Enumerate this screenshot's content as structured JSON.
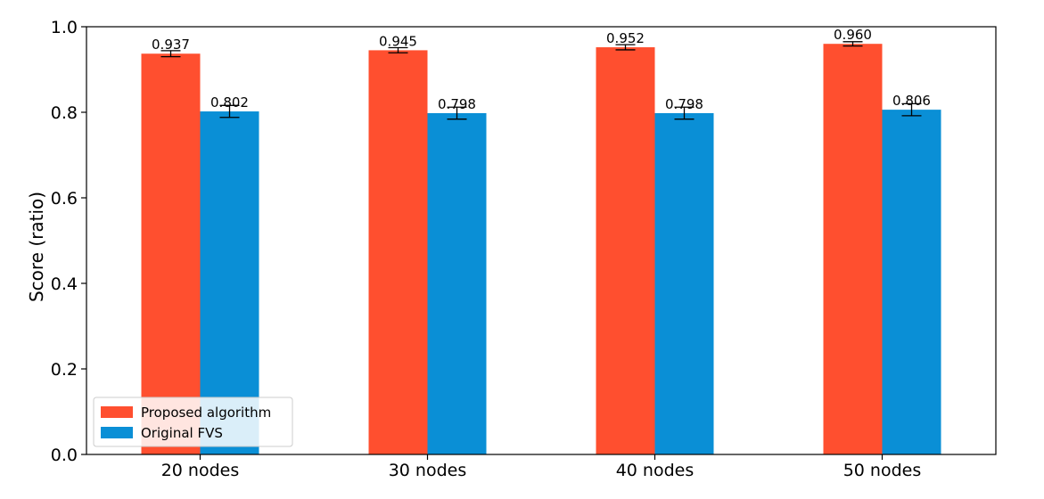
{
  "chart_data": {
    "type": "bar",
    "title": "",
    "xlabel": "",
    "ylabel": "Score (ratio)",
    "ylim": [
      0.0,
      1.0
    ],
    "yticks": [
      "0.0",
      "0.2",
      "0.4",
      "0.6",
      "0.8",
      "1.0"
    ],
    "categories": [
      "20 nodes",
      "30 nodes",
      "40 nodes",
      "50 nodes"
    ],
    "series": [
      {
        "name": "Proposed algorithm",
        "color": "#ff4f2f",
        "values": [
          0.937,
          0.945,
          0.952,
          0.96
        ],
        "labels": [
          "0.937",
          "0.945",
          "0.952",
          "0.960"
        ],
        "errors": [
          0.007,
          0.006,
          0.006,
          0.005
        ]
      },
      {
        "name": "Original FVS",
        "color": "#0a8fd6",
        "values": [
          0.802,
          0.798,
          0.798,
          0.806
        ],
        "labels": [
          "0.802",
          "0.798",
          "0.798",
          "0.806"
        ],
        "errors": [
          0.014,
          0.014,
          0.014,
          0.014
        ]
      }
    ],
    "legend_position": "lower-left",
    "grid": false
  }
}
